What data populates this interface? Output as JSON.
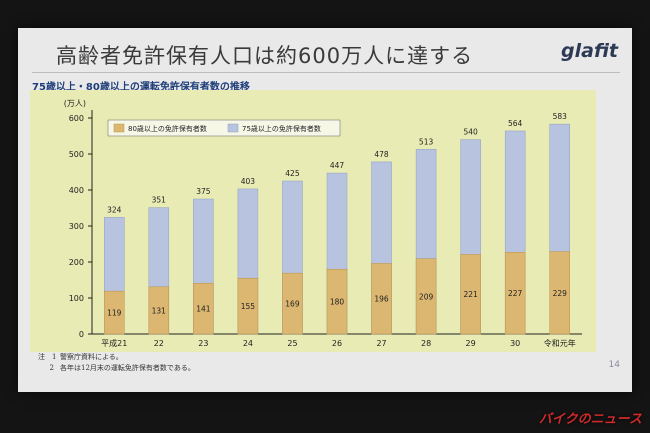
{
  "slide": {
    "title": "高齢者免許保有人口は約600万人に達する",
    "brand": "glafit",
    "subtitle": "75歳以上・80歳以上の運転免許保有者数の推移",
    "page_number": "14",
    "notes": [
      {
        "num": "注　1",
        "text": "警察庁資料による。"
      },
      {
        "num": "2",
        "text": "各年は12月末の運転免許保有者数である。"
      }
    ]
  },
  "media_logo": "バイクのニュース",
  "colors": {
    "panel_bg": "#e8ecb4",
    "series_75": "#b7c3df",
    "series_80": "#dcb772",
    "title_blue": "#1f3f7a"
  },
  "chart_data": {
    "type": "bar",
    "unit_label": "(万人)",
    "categories": [
      "平成21",
      "22",
      "23",
      "24",
      "25",
      "26",
      "27",
      "28",
      "29",
      "30",
      "令和元年"
    ],
    "ylim": [
      0,
      600
    ],
    "yticks": [
      0,
      100,
      200,
      300,
      400,
      500,
      600
    ],
    "grid": false,
    "legend_position": "top-left",
    "series": [
      {
        "name": "80歳以上の免許保有者数",
        "values": [
          119,
          131,
          141,
          155,
          169,
          180,
          196,
          209,
          221,
          227,
          229
        ]
      },
      {
        "name": "75歳以上の免許保有者数",
        "values": [
          324,
          351,
          375,
          403,
          425,
          447,
          478,
          513,
          540,
          564,
          583
        ]
      }
    ]
  }
}
